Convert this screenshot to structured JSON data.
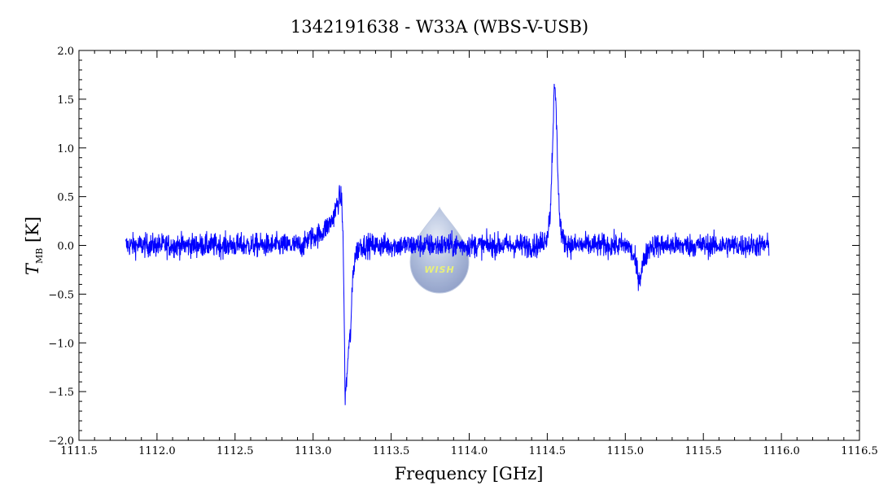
{
  "chart_data": {
    "type": "line",
    "title": "1342191638 - W33A (WBS-V-USB)",
    "xlabel": "Frequency [GHz]",
    "ylabel_main": "T",
    "ylabel_sub": "MB",
    "ylabel_unit": "[K]",
    "xlim": [
      1111.5,
      1116.5
    ],
    "ylim": [
      -2.0,
      2.0
    ],
    "x_ticks": [
      "1111.5",
      "1112.0",
      "1112.5",
      "1113.0",
      "1113.5",
      "1114.0",
      "1114.5",
      "1115.0",
      "1115.5",
      "1116.0",
      "1116.5"
    ],
    "y_ticks": [
      "-2.0",
      "-1.5",
      "-1.0",
      "-0.5",
      "0.0",
      "0.5",
      "1.0",
      "1.5",
      "2.0"
    ],
    "grid": false,
    "series": [
      {
        "color": "#0000ff",
        "x_range": [
          1111.8,
          1115.92
        ],
        "noise_rms": 0.06,
        "features": [
          {
            "kind": "absorption_emission_profile",
            "x": [
              1112.95,
              1113.05,
              1113.12,
              1113.17,
              1113.185,
              1113.195,
              1113.205,
              1113.215,
              1113.225,
              1113.24,
              1113.255,
              1113.27,
              1113.3
            ],
            "y": [
              0.05,
              0.12,
              0.25,
              0.5,
              0.45,
              -0.2,
              -1.55,
              -1.4,
              -1.1,
              -0.9,
              -0.3,
              -0.1,
              0.0
            ]
          },
          {
            "kind": "emission_line",
            "x": [
              1114.45,
              1114.5,
              1114.52,
              1114.535,
              1114.545,
              1114.555,
              1114.565,
              1114.58,
              1114.6,
              1114.65
            ],
            "y": [
              0.0,
              0.1,
              0.35,
              1.1,
              1.6,
              1.5,
              0.9,
              0.25,
              0.05,
              0.0
            ]
          },
          {
            "kind": "absorption_dip",
            "x": [
              1115.02,
              1115.06,
              1115.09,
              1115.12,
              1115.16
            ],
            "y": [
              0.0,
              -0.15,
              -0.35,
              -0.15,
              0.0
            ]
          }
        ]
      }
    ]
  },
  "logo": {
    "text": "WISH"
  }
}
